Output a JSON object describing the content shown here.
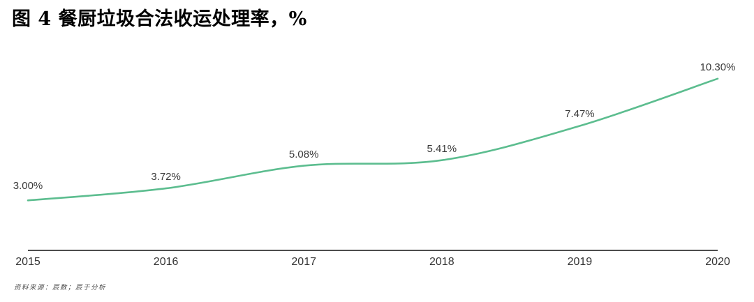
{
  "title": "图 4 餐厨垃圾合法收运处理率，%",
  "footnote": "资料来源：辰数；辰于分析",
  "colors": {
    "line": "#5cbd8f",
    "axis": "#4d4d4d",
    "data_label": "#3a3a3a",
    "tick_label": "#333333",
    "title": "#000000"
  },
  "chart_data": {
    "type": "line",
    "title": "图 4 餐厨垃圾合法收运处理率，%",
    "categories": [
      "2015",
      "2016",
      "2017",
      "2018",
      "2019",
      "2020"
    ],
    "values": [
      3.0,
      3.72,
      5.08,
      5.41,
      7.47,
      10.3
    ],
    "point_labels": [
      "3.00%",
      "3.72%",
      "5.08%",
      "5.41%",
      "7.47%",
      "10.30%"
    ],
    "xlabel": "",
    "ylabel": "",
    "unit": "%",
    "ylim": [
      0,
      11
    ],
    "grid": false,
    "legend": "none",
    "smooth": true
  }
}
